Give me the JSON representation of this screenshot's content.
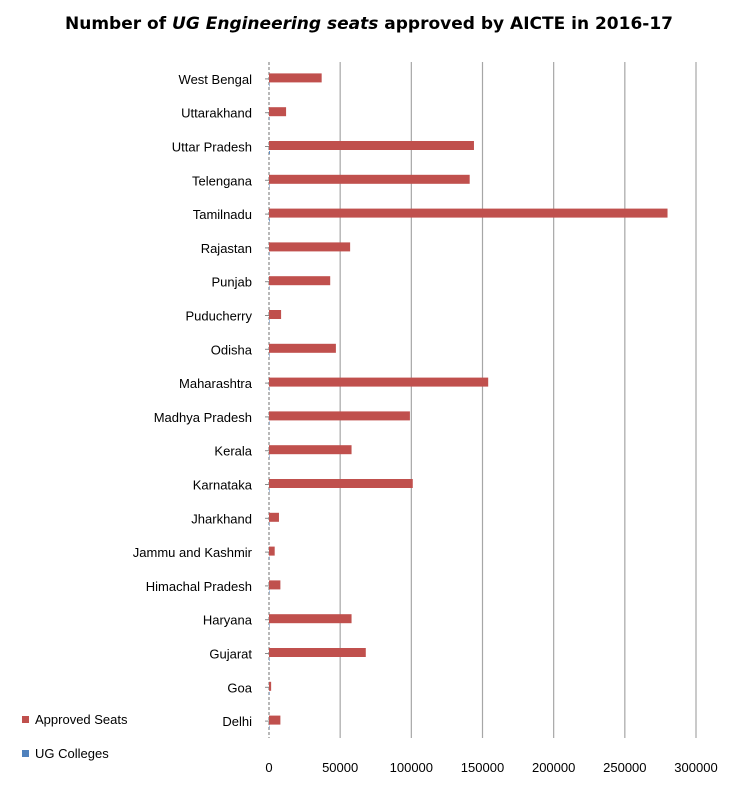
{
  "title": {
    "prefix": "Number of ",
    "emphasis": "UG Engineering seats",
    "suffix": " approved by AICTE in 2016-17"
  },
  "chart_data": {
    "type": "bar",
    "orientation": "horizontal",
    "title": "Number of UG Engineering seats approved by AICTE in 2016-17",
    "categories": [
      "Delhi",
      "Goa",
      "Gujarat",
      "Haryana",
      "Himachal Pradesh",
      "Jammu and Kashmir",
      "Jharkhand",
      "Karnataka",
      "Kerala",
      "Madhya Pradesh",
      "Maharashtra",
      "Odisha",
      "Puducherry",
      "Punjab",
      "Rajastan",
      "Tamilnadu",
      "Telengana",
      "Uttar Pradesh",
      "Uttarakhand",
      "West Bengal"
    ],
    "series": [
      {
        "name": "Approved Seats",
        "color": "#c0504d",
        "values": [
          8000,
          1500,
          68000,
          58000,
          8000,
          4000,
          7000,
          101000,
          58000,
          99000,
          154000,
          47000,
          8500,
          43000,
          57000,
          280000,
          141000,
          144000,
          12000,
          37000
        ]
      },
      {
        "name": "UG Colleges",
        "color": "#4f81bd",
        "values": [
          15,
          5,
          220,
          160,
          30,
          15,
          20,
          200,
          160,
          200,
          370,
          100,
          10,
          100,
          120,
          520,
          230,
          600,
          40,
          90
        ]
      }
    ],
    "xlim": [
      0,
      300000
    ],
    "xticks": [
      "0",
      "50000",
      "100000",
      "150000",
      "200000",
      "250000",
      "300000"
    ],
    "grid": "vertical",
    "legend": "bottom-left"
  }
}
